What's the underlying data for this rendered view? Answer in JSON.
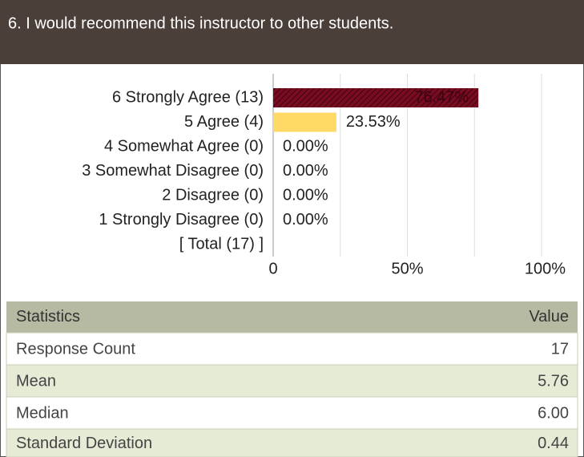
{
  "header": {
    "title": "6. I would recommend this instructor to other students."
  },
  "chart_data": {
    "type": "bar",
    "orientation": "horizontal",
    "categories": [
      "6 Strongly Agree (13)",
      "5 Agree (4)",
      "4 Somewhat Agree (0)",
      "3 Somewhat Disagree (0)",
      "2 Disagree (0)",
      "1 Strongly Disagree (0)"
    ],
    "values": [
      76.47,
      23.53,
      0,
      0,
      0,
      0
    ],
    "value_labels": [
      "76.47%",
      "23.53%",
      "0.00%",
      "0.00%",
      "0.00%",
      "0.00%"
    ],
    "colors": [
      "#7a0c22",
      "#ffd966",
      "#ffd966",
      "#ffd966",
      "#ffd966",
      "#ffd966"
    ],
    "total_label": "[ Total (17) ]",
    "xlim": [
      0,
      100
    ],
    "xticks": [
      0,
      {
        "value": 50,
        "label": "50%"
      },
      {
        "value": 100,
        "label": "100%"
      }
    ],
    "xgrid": [
      25,
      50,
      75,
      100
    ],
    "grid": true
  },
  "table": {
    "header": [
      "Statistics",
      "Value"
    ],
    "rows": [
      [
        "Response Count",
        "17"
      ],
      [
        "Mean",
        "5.76"
      ],
      [
        "Median",
        "6.00"
      ],
      [
        "Standard Deviation",
        "0.44"
      ]
    ]
  }
}
